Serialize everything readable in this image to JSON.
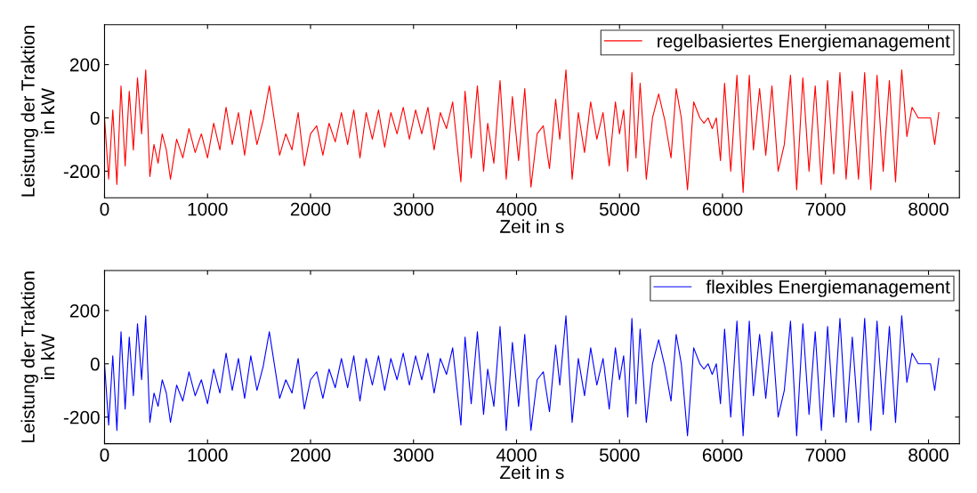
{
  "chart_data": [
    {
      "type": "line",
      "xlabel": "Zeit in s",
      "ylabel": "Leistung der Traktion\nin kW",
      "xlim": [
        0,
        8300
      ],
      "xticks": [
        0,
        1000,
        2000,
        3000,
        4000,
        5000,
        6000,
        7000,
        8000
      ],
      "ylim": [
        -300,
        350
      ],
      "yticks": [
        -200,
        0,
        200
      ],
      "legend": "top right",
      "grid": false,
      "x": [
        0,
        40,
        80,
        120,
        160,
        200,
        240,
        280,
        320,
        360,
        400,
        440,
        480,
        520,
        560,
        600,
        640,
        700,
        760,
        820,
        880,
        940,
        1000,
        1060,
        1120,
        1180,
        1240,
        1300,
        1360,
        1420,
        1480,
        1540,
        1600,
        1700,
        1760,
        1820,
        1880,
        1940,
        2000,
        2060,
        2120,
        2180,
        2240,
        2300,
        2360,
        2420,
        2480,
        2540,
        2600,
        2660,
        2720,
        2780,
        2840,
        2900,
        2960,
        3020,
        3080,
        3140,
        3200,
        3260,
        3320,
        3380,
        3460,
        3500,
        3560,
        3620,
        3680,
        3720,
        3780,
        3840,
        3900,
        3960,
        4020,
        4080,
        4140,
        4200,
        4260,
        4320,
        4380,
        4420,
        4480,
        4540,
        4600,
        4660,
        4720,
        4780,
        4840,
        4900,
        4960,
        5000,
        5040,
        5080,
        5120,
        5160,
        5200,
        5260,
        5320,
        5380,
        5440,
        5500,
        5550,
        5600,
        5660,
        5720,
        5780,
        5820,
        5860,
        5900,
        5940,
        5980,
        6020,
        6080,
        6140,
        6200,
        6260,
        6300,
        6360,
        6420,
        6480,
        6540,
        6600,
        6660,
        6720,
        6780,
        6840,
        6900,
        6960,
        7020,
        7080,
        7140,
        7200,
        7260,
        7320,
        7380,
        7440,
        7500,
        7560,
        7620,
        7680,
        7740,
        7790,
        7840,
        7900,
        7960,
        8020,
        8060,
        8100
      ],
      "series": [
        {
          "name": "regelbasiertes Energiemanagement",
          "color": "#ff0000",
          "values": [
            0,
            -230,
            30,
            -250,
            120,
            -180,
            100,
            -120,
            150,
            -60,
            180,
            -220,
            -100,
            -170,
            -60,
            -120,
            -230,
            -80,
            -150,
            -40,
            -130,
            -60,
            -150,
            -20,
            -120,
            40,
            -100,
            20,
            -140,
            30,
            -100,
            -10,
            120,
            -140,
            -60,
            -120,
            20,
            -180,
            -60,
            -30,
            -140,
            -20,
            -90,
            20,
            -100,
            30,
            -150,
            20,
            -80,
            30,
            -110,
            20,
            -60,
            40,
            -80,
            30,
            -60,
            40,
            -120,
            20,
            -40,
            60,
            -240,
            100,
            -150,
            120,
            -200,
            -20,
            -170,
            140,
            -230,
            80,
            -160,
            110,
            -260,
            -60,
            -30,
            -190,
            70,
            -80,
            180,
            -230,
            20,
            -130,
            60,
            -80,
            20,
            -180,
            60,
            -60,
            30,
            -200,
            170,
            -150,
            130,
            -230,
            0,
            90,
            -10,
            -150,
            110,
            0,
            -270,
            60,
            0,
            -20,
            0,
            -40,
            0,
            -160,
            130,
            -200,
            160,
            -280,
            160,
            -120,
            110,
            -140,
            120,
            -200,
            -100,
            160,
            -270,
            150,
            -200,
            120,
            -250,
            140,
            -210,
            170,
            -230,
            100,
            -230,
            170,
            -270,
            160,
            -200,
            140,
            -240,
            180,
            -70,
            40,
            0,
            0,
            0,
            -100,
            20
          ]
        }
      ]
    },
    {
      "type": "line",
      "xlabel": "Zeit in s",
      "ylabel": "Leistung der Traktion\nin kW",
      "xlim": [
        0,
        8300
      ],
      "xticks": [
        0,
        1000,
        2000,
        3000,
        4000,
        5000,
        6000,
        7000,
        8000
      ],
      "ylim": [
        -300,
        350
      ],
      "yticks": [
        -200,
        0,
        200
      ],
      "legend": "top right",
      "grid": false,
      "x": [
        0,
        40,
        80,
        120,
        160,
        200,
        240,
        280,
        320,
        360,
        400,
        440,
        480,
        520,
        560,
        600,
        640,
        700,
        760,
        820,
        880,
        940,
        1000,
        1060,
        1120,
        1180,
        1240,
        1300,
        1360,
        1420,
        1480,
        1540,
        1600,
        1700,
        1760,
        1820,
        1880,
        1940,
        2000,
        2060,
        2120,
        2180,
        2240,
        2300,
        2360,
        2420,
        2480,
        2540,
        2600,
        2660,
        2720,
        2780,
        2840,
        2900,
        2960,
        3020,
        3080,
        3140,
        3200,
        3260,
        3320,
        3380,
        3460,
        3500,
        3560,
        3620,
        3680,
        3720,
        3780,
        3840,
        3900,
        3960,
        4020,
        4080,
        4140,
        4200,
        4260,
        4320,
        4380,
        4420,
        4480,
        4540,
        4600,
        4660,
        4720,
        4780,
        4840,
        4900,
        4960,
        5000,
        5040,
        5080,
        5120,
        5160,
        5200,
        5260,
        5320,
        5380,
        5440,
        5500,
        5550,
        5600,
        5660,
        5720,
        5780,
        5820,
        5860,
        5900,
        5940,
        5980,
        6020,
        6080,
        6140,
        6200,
        6260,
        6300,
        6360,
        6420,
        6480,
        6540,
        6600,
        6660,
        6720,
        6780,
        6840,
        6900,
        6960,
        7020,
        7080,
        7140,
        7200,
        7260,
        7320,
        7380,
        7440,
        7500,
        7560,
        7620,
        7680,
        7740,
        7790,
        7840,
        7900,
        7960,
        8020,
        8060,
        8100
      ],
      "series": [
        {
          "name": "flexibles Energiemanagement",
          "color": "#0000ff",
          "values": [
            0,
            -230,
            30,
            -250,
            120,
            -170,
            100,
            -120,
            150,
            -60,
            180,
            -220,
            -110,
            -160,
            -60,
            -110,
            -220,
            -80,
            -140,
            -30,
            -120,
            -60,
            -150,
            -20,
            -110,
            40,
            -100,
            20,
            -130,
            30,
            -100,
            -10,
            120,
            -130,
            -60,
            -110,
            20,
            -170,
            -60,
            -30,
            -130,
            -20,
            -90,
            20,
            -90,
            30,
            -140,
            20,
            -80,
            30,
            -100,
            20,
            -60,
            40,
            -80,
            30,
            -60,
            40,
            -110,
            20,
            -40,
            60,
            -230,
            100,
            -150,
            120,
            -190,
            -20,
            -160,
            140,
            -250,
            80,
            -160,
            110,
            -250,
            -60,
            -30,
            -180,
            70,
            -80,
            180,
            -220,
            20,
            -120,
            60,
            -80,
            20,
            -170,
            60,
            -60,
            30,
            -200,
            170,
            -150,
            130,
            -220,
            0,
            90,
            -10,
            -140,
            110,
            0,
            -270,
            60,
            0,
            -20,
            0,
            -40,
            0,
            -150,
            130,
            -200,
            160,
            -270,
            160,
            -120,
            110,
            -130,
            120,
            -200,
            -100,
            160,
            -270,
            150,
            -190,
            120,
            -250,
            140,
            -200,
            170,
            -220,
            100,
            -220,
            170,
            -250,
            160,
            -190,
            140,
            -220,
            180,
            -70,
            40,
            0,
            0,
            0,
            -100,
            20
          ]
        }
      ]
    }
  ]
}
